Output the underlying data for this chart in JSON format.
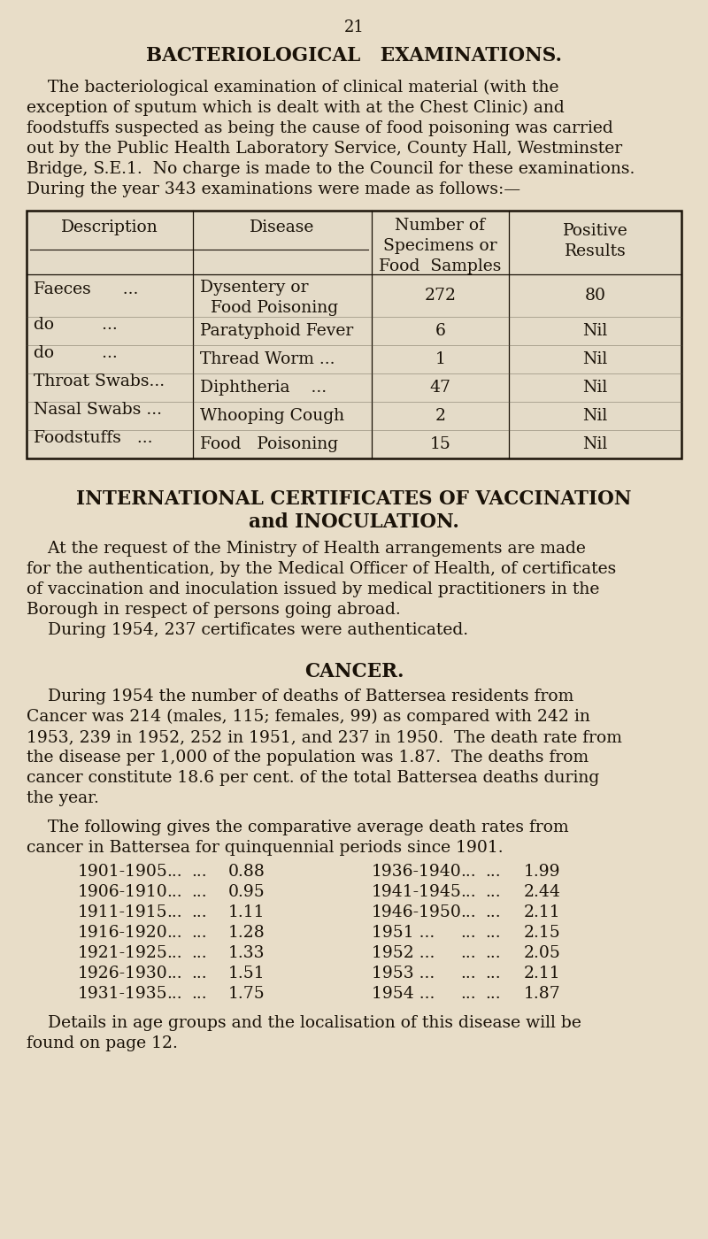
{
  "bg_color": "#e8ddc8",
  "text_color": "#1a1208",
  "page_number": "21",
  "section1_title": "BACTERIOLOGICAL   EXAMINATIONS.",
  "para1_lines": [
    "    The bacteriological examination of clinical material (with the",
    "exception of sputum which is dealt with at the Chest Clinic) and",
    "foodstuffs suspected as being the cause of food poisoning was carried",
    "out by the Public Health Laboratory Service, County Hall, Westminster",
    "Bridge, S.E.1.  No charge is made to the Council for these examinations.",
    "During the year 343 examinations were made as follows:—"
  ],
  "table_headers": [
    "Description",
    "Disease",
    "Number of\nSpecimens or\nFood Samples",
    "Positive\nResults"
  ],
  "table_rows": [
    [
      "Faeces      ...",
      "Dysentery or\n  Food Poisoning",
      "272",
      "80"
    ],
    [
      "do         ...",
      "Paratyphoid Fever",
      "6",
      "Nil"
    ],
    [
      "do         ...",
      "Thread Worm ...",
      "1",
      "Nil"
    ],
    [
      "Throat Swabs...",
      "Diphtheria    ...",
      "47",
      "Nil"
    ],
    [
      "Nasal Swabs ...",
      "Whooping Cough",
      "2",
      "Nil"
    ],
    [
      "Foodstuffs   ...",
      "Food   Poisoning",
      "15",
      "Nil"
    ]
  ],
  "section2_title_line1": "INTERNATIONAL CERTIFICATES OF VACCINATION",
  "section2_title_line2": "and INOCULATION.",
  "sec2_lines": [
    "    At the request of the Ministry of Health arrangements are made",
    "for the authentication, by the Medical Officer of Health, of certificates",
    "of vaccination and inoculation issued by medical practitioners in the",
    "Borough in respect of persons going abroad.",
    "    During 1954, 237 certificates were authenticated."
  ],
  "section3_title": "CANCER.",
  "sec3_para1_lines": [
    "    During 1954 the number of deaths of Battersea residents from",
    "Cancer was 214 (males, 115; females, 99) as compared with 242 in",
    "1953, 239 in 1952, 252 in 1951, and 237 in 1950.  The death rate from",
    "the disease per 1,000 of the population was 1.87.  The deaths from",
    "cancer constitute 18.6 per cent. of the total Battersea deaths during",
    "the year."
  ],
  "sec3_para2_lines": [
    "    The following gives the comparative average death rates from",
    "cancer in Battersea for quinquennial periods since 1901."
  ],
  "cancer_left": [
    [
      "1901-1905",
      "...",
      "...",
      "0.88"
    ],
    [
      "1906-1910",
      "...",
      "...",
      "0.95"
    ],
    [
      "1911-1915",
      "...",
      "...",
      "1.11"
    ],
    [
      "1916-1920",
      "...",
      "...",
      "1.28"
    ],
    [
      "1921-1925",
      "...",
      "...",
      "1.33"
    ],
    [
      "1926-1930",
      "...",
      "...",
      "1.51"
    ],
    [
      "1931-1935",
      "...",
      "...",
      "1.75"
    ]
  ],
  "cancer_right": [
    [
      "1936-1940",
      "...",
      "...",
      "1.99"
    ],
    [
      "1941-1945",
      "...",
      "...",
      "2.44"
    ],
    [
      "1946-1950",
      "...",
      "...",
      "2.11"
    ],
    [
      "1951 ...",
      "...",
      "...",
      "2.15"
    ],
    [
      "1952 ...",
      "...",
      "...",
      "2.05"
    ],
    [
      "1953 ...",
      "...",
      "...",
      "2.11"
    ],
    [
      "1954 ...",
      "...",
      "...",
      "1.87"
    ]
  ],
  "footer_lines": [
    "    Details in age groups and the localisation of this disease will be",
    "found on page 12."
  ]
}
